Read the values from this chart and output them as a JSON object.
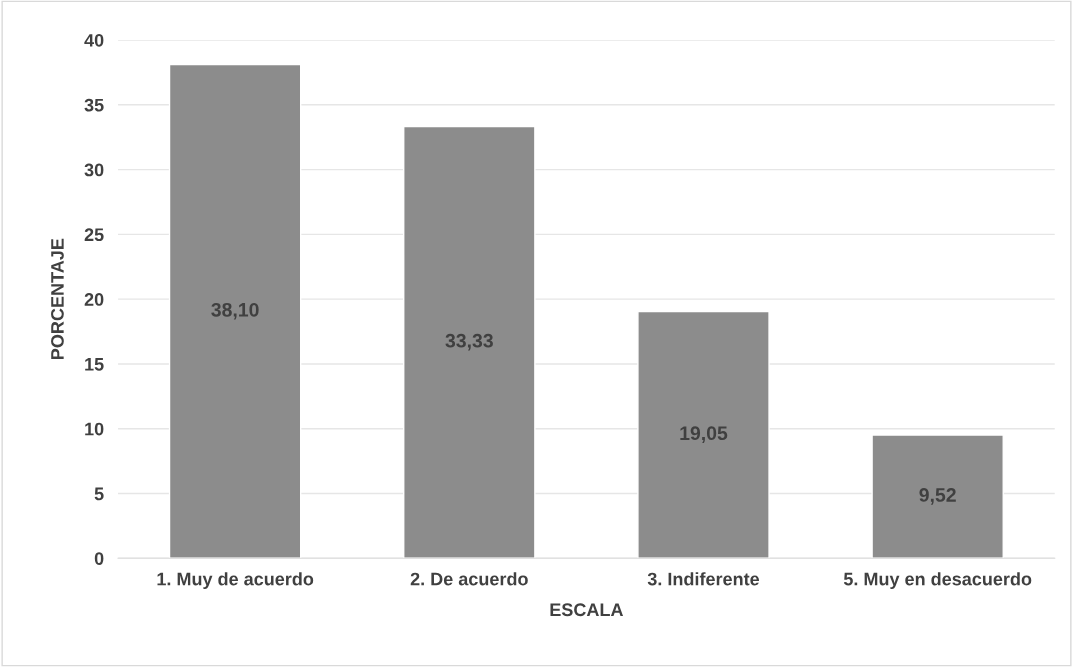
{
  "chart_data": {
    "type": "bar",
    "xlabel": "ESCALA",
    "ylabel": "PORCENTAJE",
    "categories": [
      "1. Muy de acuerdo",
      "2. De acuerdo",
      "3. Indiferente",
      "5. Muy en desacuerdo"
    ],
    "values": [
      38.1,
      33.33,
      19.05,
      9.52
    ],
    "value_labels": [
      "38,10",
      "33,33",
      "19,05",
      "9,52"
    ],
    "color": "#8c8c8c",
    "ylim": [
      0,
      40
    ],
    "yticks": [
      0,
      5,
      10,
      15,
      20,
      25,
      30,
      35,
      40
    ],
    "grid": "y",
    "legend": false
  }
}
